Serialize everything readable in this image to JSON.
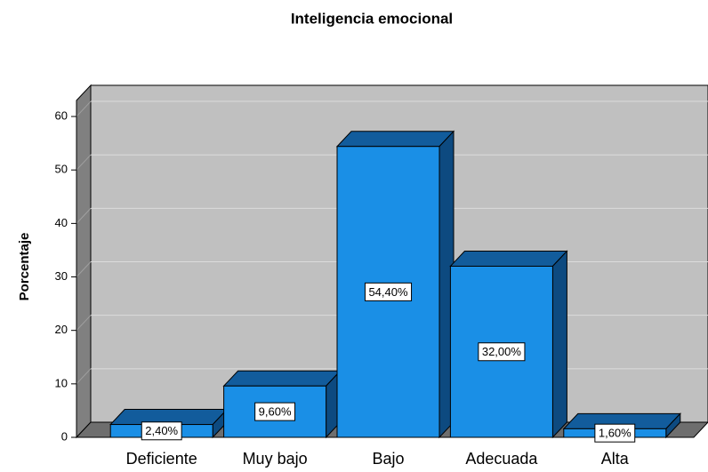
{
  "chart_data": {
    "type": "bar3d",
    "title": "Inteligencia emocional",
    "y_label": "Porcentaje",
    "categories": [
      "Deficiente",
      "Muy bajo",
      "Bajo",
      "Adecuada",
      "Alta"
    ],
    "values": [
      2.4,
      9.6,
      54.4,
      32.0,
      1.6
    ],
    "value_labels": [
      "2,40%",
      "9,60%",
      "54,40%",
      "32,00%",
      "1,60%"
    ],
    "color": "#1a8fe6",
    "ylim": [
      0,
      63
    ],
    "yticks": [
      0,
      10,
      20,
      30,
      40,
      50,
      60
    ],
    "grid": true
  }
}
